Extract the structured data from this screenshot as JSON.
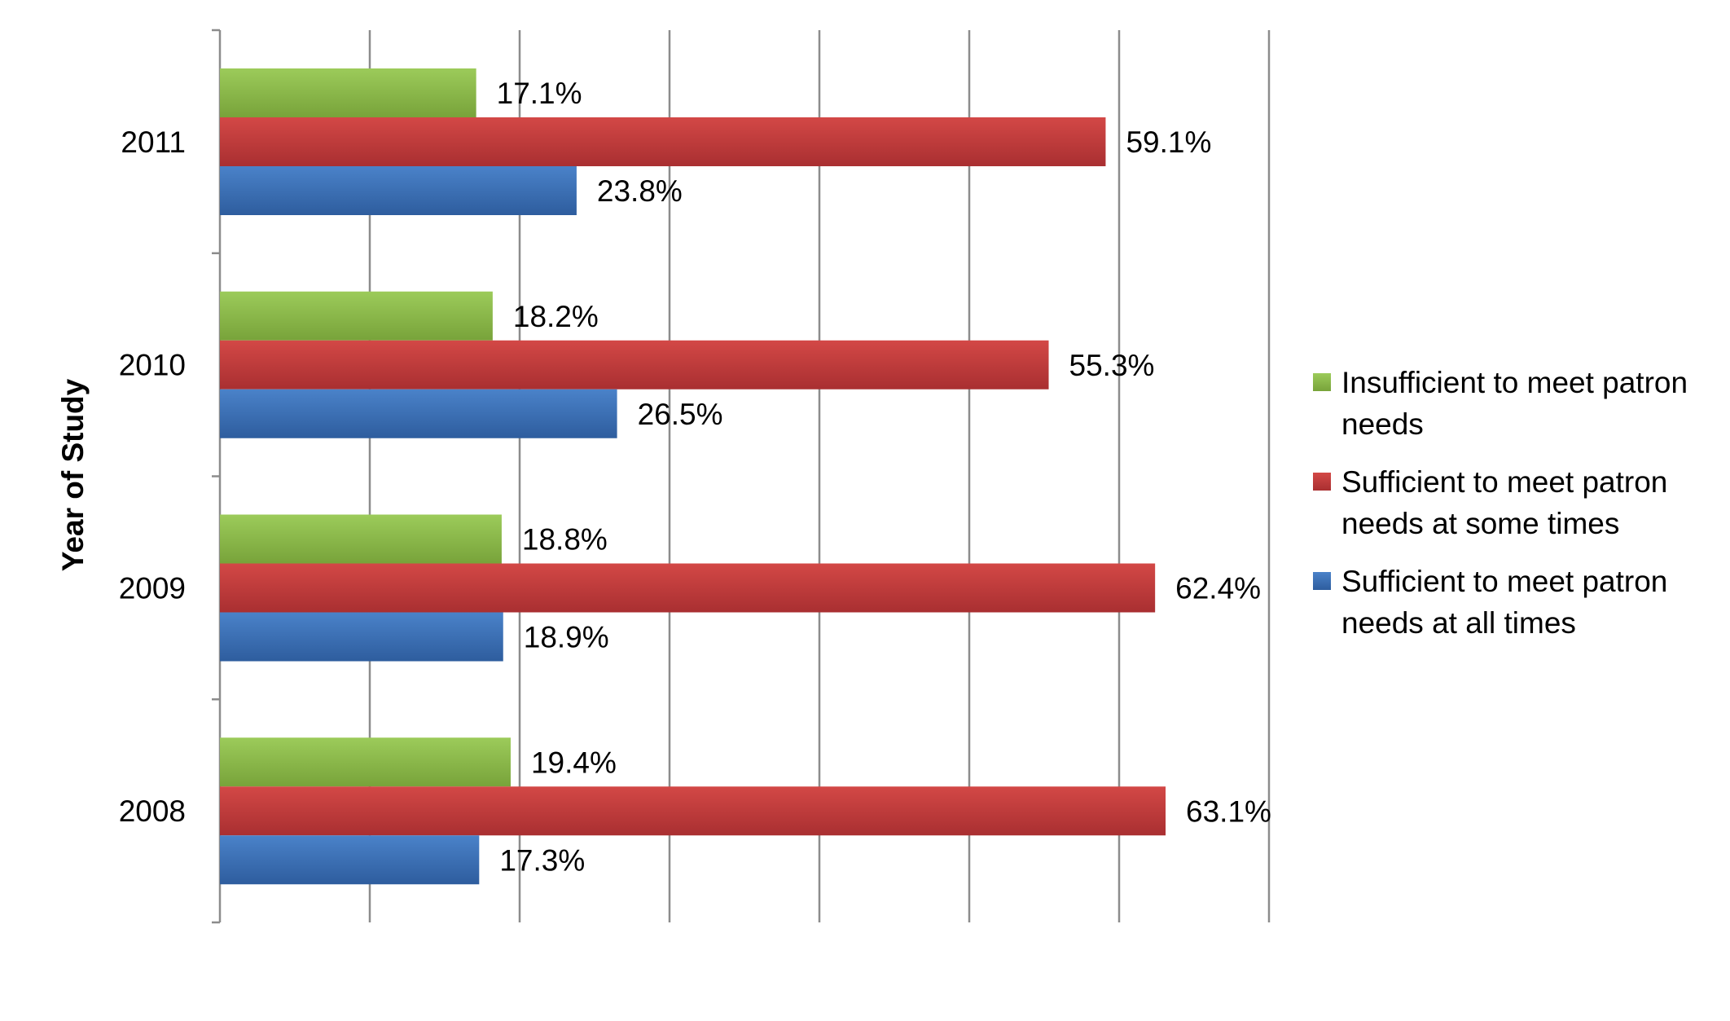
{
  "chart_data": {
    "type": "bar",
    "orientation": "horizontal",
    "ylabel": "Year of Study",
    "xlabel": "",
    "categories": [
      "2011",
      "2010",
      "2009",
      "2008"
    ],
    "xlim": [
      0,
      70
    ],
    "grid": true,
    "legend_position": "right",
    "series": [
      {
        "name": "Insufficient to meet patron needs",
        "color": "#8ab84a",
        "values": [
          17.1,
          18.2,
          18.8,
          19.4
        ],
        "labels": [
          "17.1%",
          "18.2%",
          "18.8%",
          "19.4%"
        ]
      },
      {
        "name": "Sufficient to meet patron needs at some times",
        "color": "#c0393b",
        "values": [
          59.1,
          55.3,
          62.4,
          63.1
        ],
        "labels": [
          "59.1%",
          "55.3%",
          "62.4%",
          "63.1%"
        ]
      },
      {
        "name": "Sufficient to meet patron needs at all times",
        "color": "#3b6fb6",
        "values": [
          23.8,
          26.5,
          18.9,
          17.3
        ],
        "labels": [
          "23.8%",
          "26.5%",
          "18.9%",
          "17.3%"
        ]
      }
    ]
  }
}
